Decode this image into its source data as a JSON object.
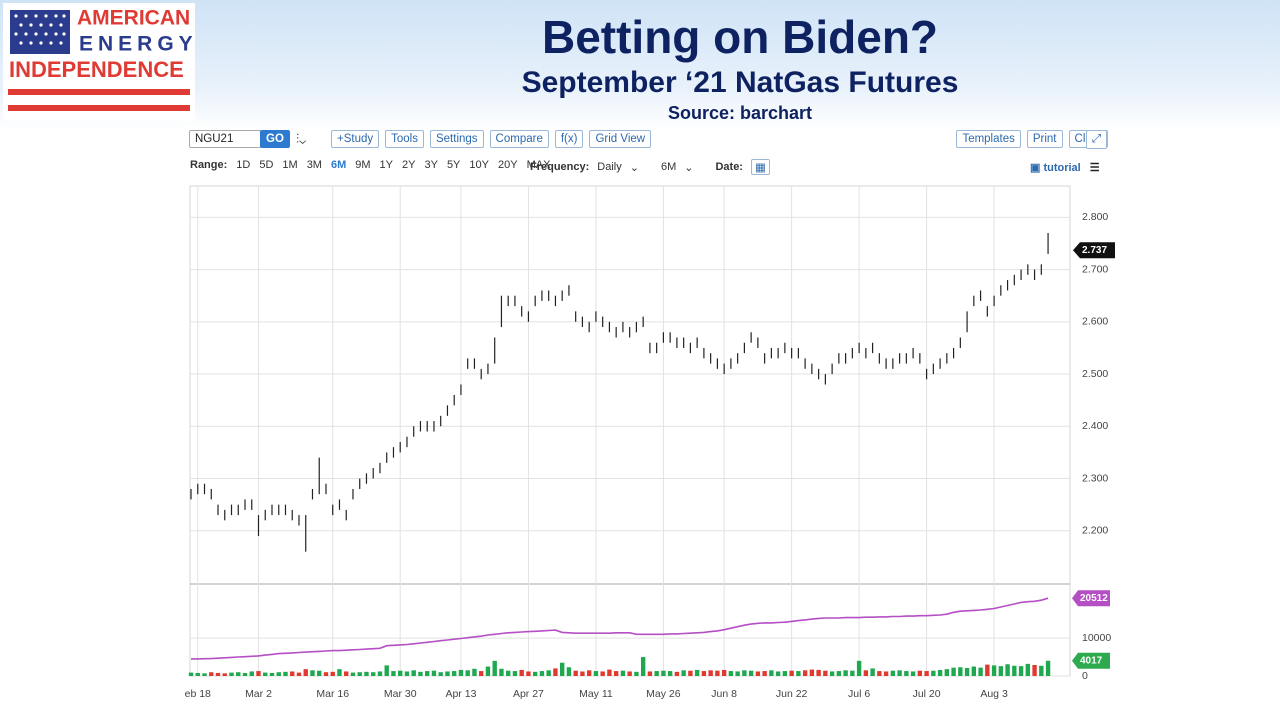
{
  "header": {
    "logo": [
      "AMERICAN",
      "ENERGY",
      "INDEPENDENCE"
    ],
    "title": "Betting on Biden?",
    "subtitle": "September ‘21 NatGas Futures",
    "source": "Source: barchart"
  },
  "toolbar": {
    "symbol": "NGU21",
    "go": "GO",
    "buttons_left": [
      "+Study",
      "Tools",
      "Settings",
      "Compare",
      "f(x)",
      "Grid View"
    ],
    "buttons_right": [
      "Templates",
      "Print",
      "Clear"
    ],
    "range_label": "Range:",
    "ranges": [
      "1D",
      "5D",
      "1M",
      "3M",
      "6M",
      "9M",
      "1Y",
      "2Y",
      "3Y",
      "5Y",
      "10Y",
      "20Y",
      "MAX"
    ],
    "active_range": 4,
    "frequency_label": "Frequency:",
    "frequency": "Daily",
    "period": "6M",
    "date_label": "Date:",
    "tutorial": "tutorial"
  },
  "chart_data": {
    "type": "ohlc",
    "ylim": [
      2.1,
      2.86
    ],
    "yticks": [
      {
        "value": 2.2,
        "label": "2.200"
      },
      {
        "value": 2.3,
        "label": "2.300"
      },
      {
        "value": 2.4,
        "label": "2.400"
      },
      {
        "value": 2.5,
        "label": "2.500"
      },
      {
        "value": 2.6,
        "label": "2.600"
      },
      {
        "value": 2.7,
        "label": "2.700"
      },
      {
        "value": 2.8,
        "label": "2.800"
      }
    ],
    "xlim": [
      -0.15,
      130.25
    ],
    "xticks": [
      {
        "value": 1,
        "label": "eb 18"
      },
      {
        "value": 10,
        "label": "Mar 2"
      },
      {
        "value": 21,
        "label": "Mar 16"
      },
      {
        "value": 31,
        "label": "Mar 30"
      },
      {
        "value": 40,
        "label": "Apr 13"
      },
      {
        "value": 50,
        "label": "Apr 27"
      },
      {
        "value": 60,
        "label": "May 11"
      },
      {
        "value": 70,
        "label": "May 26"
      },
      {
        "value": 79,
        "label": "Jun 8"
      },
      {
        "value": 89,
        "label": "Jun 22"
      },
      {
        "value": 99,
        "label": "Jul 6"
      },
      {
        "value": 109,
        "label": "Jul 20"
      },
      {
        "value": 119,
        "label": "Aug 3"
      }
    ],
    "grid": true,
    "bar_color": "#222222",
    "last_price": 2.737,
    "high": [
      2.28,
      2.29,
      2.29,
      2.28,
      2.25,
      2.24,
      2.25,
      2.25,
      2.26,
      2.26,
      2.23,
      2.24,
      2.25,
      2.25,
      2.25,
      2.24,
      2.23,
      2.23,
      2.28,
      2.34,
      2.29,
      2.25,
      2.26,
      2.24,
      2.28,
      2.3,
      2.31,
      2.32,
      2.33,
      2.35,
      2.36,
      2.37,
      2.38,
      2.4,
      2.41,
      2.41,
      2.41,
      2.42,
      2.44,
      2.46,
      2.48,
      2.53,
      2.53,
      2.51,
      2.52,
      2.57,
      2.65,
      2.65,
      2.65,
      2.63,
      2.62,
      2.65,
      2.66,
      2.66,
      2.65,
      2.66,
      2.67,
      2.62,
      2.61,
      2.6,
      2.62,
      2.61,
      2.6,
      2.59,
      2.6,
      2.59,
      2.6,
      2.61,
      2.56,
      2.56,
      2.58,
      2.58,
      2.57,
      2.57,
      2.56,
      2.57,
      2.55,
      2.54,
      2.53,
      2.52,
      2.53,
      2.54,
      2.56,
      2.58,
      2.57,
      2.54,
      2.55,
      2.55,
      2.56,
      2.55,
      2.55,
      2.53,
      2.52,
      2.51,
      2.5,
      2.52,
      2.54,
      2.54,
      2.55,
      2.56,
      2.55,
      2.56,
      2.54,
      2.53,
      2.53,
      2.54,
      2.54,
      2.55,
      2.54,
      2.51,
      2.52,
      2.53,
      2.54,
      2.55,
      2.57,
      2.62,
      2.65,
      2.66,
      2.63,
      2.65,
      2.67,
      2.68,
      2.69,
      2.7,
      2.71,
      2.7,
      2.71,
      2.77
    ],
    "low": [
      2.26,
      2.27,
      2.27,
      2.26,
      2.23,
      2.22,
      2.23,
      2.23,
      2.24,
      2.24,
      2.19,
      2.22,
      2.23,
      2.23,
      2.23,
      2.22,
      2.21,
      2.16,
      2.26,
      2.27,
      2.27,
      2.23,
      2.24,
      2.22,
      2.26,
      2.28,
      2.29,
      2.3,
      2.31,
      2.33,
      2.34,
      2.35,
      2.36,
      2.38,
      2.39,
      2.39,
      2.39,
      2.4,
      2.42,
      2.44,
      2.46,
      2.51,
      2.51,
      2.49,
      2.5,
      2.52,
      2.59,
      2.63,
      2.63,
      2.61,
      2.6,
      2.63,
      2.64,
      2.64,
      2.63,
      2.64,
      2.65,
      2.6,
      2.59,
      2.58,
      2.6,
      2.59,
      2.58,
      2.57,
      2.58,
      2.57,
      2.58,
      2.59,
      2.54,
      2.54,
      2.56,
      2.56,
      2.55,
      2.55,
      2.54,
      2.55,
      2.53,
      2.52,
      2.51,
      2.5,
      2.51,
      2.52,
      2.54,
      2.56,
      2.55,
      2.52,
      2.53,
      2.53,
      2.54,
      2.53,
      2.53,
      2.51,
      2.5,
      2.49,
      2.48,
      2.5,
      2.52,
      2.52,
      2.53,
      2.54,
      2.53,
      2.54,
      2.52,
      2.51,
      2.51,
      2.52,
      2.52,
      2.53,
      2.52,
      2.49,
      2.5,
      2.51,
      2.52,
      2.53,
      2.55,
      2.58,
      2.63,
      2.64,
      2.61,
      2.63,
      2.65,
      2.66,
      2.67,
      2.68,
      2.69,
      2.68,
      2.69,
      2.73
    ],
    "vylim": [
      0,
      24000
    ],
    "vyticks": [
      0,
      10000
    ],
    "up_color": "#1fa84f",
    "down_color": "#e0392f",
    "oi_color": "#b44fc4",
    "badge_color": "#2eaa4e",
    "volume": [
      900,
      800,
      700,
      1000,
      800,
      700,
      900,
      1000,
      800,
      1200,
      1300,
      900,
      800,
      1000,
      1100,
      1200,
      900,
      1800,
      1500,
      1400,
      1000,
      1100,
      1800,
      1200,
      900,
      1000,
      1100,
      1000,
      1200,
      2800,
      1300,
      1400,
      1200,
      1500,
      1100,
      1300,
      1400,
      1000,
      1200,
      1300,
      1600,
      1500,
      1900,
      1300,
      2500,
      4000,
      1900,
      1400,
      1300,
      1600,
      1200,
      1100,
      1300,
      1500,
      2000,
      3500,
      2300,
      1400,
      1200,
      1500,
      1300,
      1200,
      1700,
      1300,
      1400,
      1200,
      1100,
      5000,
      1200,
      1300,
      1400,
      1300,
      1100,
      1500,
      1400,
      1600,
      1300,
      1500,
      1400,
      1600,
      1300,
      1200,
      1500,
      1400,
      1200,
      1300,
      1500,
      1200,
      1300,
      1400,
      1300,
      1500,
      1700,
      1600,
      1400,
      1200,
      1300,
      1500,
      1400,
      4000,
      1500,
      2000,
      1300,
      1200,
      1400,
      1500,
      1300,
      1200,
      1400,
      1300,
      1400,
      1600,
      1800,
      2200,
      2300,
      2100,
      2500,
      2200,
      3000,
      2800,
      2600,
      3100,
      2700,
      2600,
      3200,
      2900,
      2700,
      4017
    ],
    "open_interest": [
      4500,
      4500,
      4550,
      4600,
      4700,
      4800,
      4900,
      5000,
      5100,
      5200,
      5300,
      5500,
      5700,
      5900,
      6000,
      6100,
      6200,
      6300,
      6400,
      6500,
      6600,
      6700,
      6700,
      6800,
      6900,
      7000,
      7100,
      7200,
      7300,
      8000,
      8100,
      8200,
      8300,
      8500,
      8700,
      8900,
      9100,
      9300,
      9500,
      9700,
      9900,
      10100,
      10300,
      10500,
      10800,
      11000,
      11200,
      11400,
      11500,
      11600,
      11700,
      11800,
      11900,
      12000,
      12100,
      11500,
      11400,
      11300,
      11300,
      11300,
      11300,
      11300,
      11300,
      11400,
      11400,
      11400,
      11000,
      11000,
      11000,
      11000,
      11000,
      11100,
      11100,
      11200,
      11300,
      11400,
      11500,
      11700,
      11900,
      12200,
      12600,
      13000,
      13400,
      13700,
      13900,
      14000,
      14000,
      14100,
      14200,
      14400,
      14600,
      14800,
      15000,
      15200,
      15300,
      15300,
      15300,
      15400,
      15400,
      15400,
      15500,
      15500,
      15600,
      15600,
      15700,
      15700,
      15800,
      15800,
      15900,
      15900,
      16000,
      16100,
      16300,
      16800,
      17100,
      17200,
      17300,
      17400,
      17600,
      17800,
      18200,
      18600,
      19000,
      19400,
      19600,
      19700,
      20000,
      20512
    ]
  }
}
